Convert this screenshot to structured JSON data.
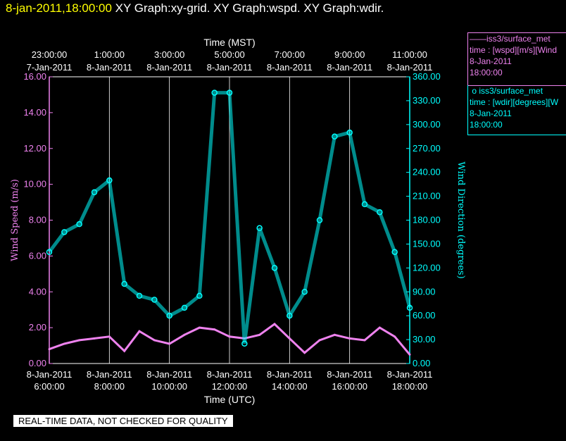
{
  "header": {
    "time": "8-jan-2011,18:00:00",
    "graphs": "XY Graph:xy-grid.  XY Graph:wspd.  XY Graph:wdir."
  },
  "legend": [
    {
      "line1": "iss3/surface_met",
      "line2": "time : [wspd][m/s][Wind",
      "line3": "8-Jan-2011",
      "line4": "18:00:00",
      "color": "#ee82ee",
      "marker": "line"
    },
    {
      "line1": "iss3/surface_met",
      "line2": "time : [wdir][degrees][W",
      "line3": "8-Jan-2011",
      "line4": "18:00:00",
      "color": "#00ffff",
      "marker": "circle"
    }
  ],
  "footer_note": "REAL-TIME DATA, NOT CHECKED FOR QUALITY",
  "chart_data": {
    "type": "scatter",
    "grid": true,
    "top_axis": {
      "label": "Time (MST)",
      "ticks": [
        {
          "time": "23:00:00",
          "date": "7-Jan-2011"
        },
        {
          "time": "1:00:00",
          "date": "8-Jan-2011"
        },
        {
          "time": "3:00:00",
          "date": "8-Jan-2011"
        },
        {
          "time": "5:00:00",
          "date": "8-Jan-2011"
        },
        {
          "time": "7:00:00",
          "date": "8-Jan-2011"
        },
        {
          "time": "9:00:00",
          "date": "8-Jan-2011"
        },
        {
          "time": "11:00:00",
          "date": "8-Jan-2011"
        }
      ]
    },
    "bottom_axis": {
      "label": "Time (UTC)",
      "range_hours_utc": [
        6,
        18
      ],
      "ticks": [
        {
          "date": "8-Jan-2011",
          "time": "6:00:00"
        },
        {
          "date": "8-Jan-2011",
          "time": "8:00:00"
        },
        {
          "date": "8-Jan-2011",
          "time": "10:00:00"
        },
        {
          "date": "8-Jan-2011",
          "time": "12:00:00"
        },
        {
          "date": "8-Jan-2011",
          "time": "14:00:00"
        },
        {
          "date": "8-Jan-2011",
          "time": "16:00:00"
        },
        {
          "date": "8-Jan-2011",
          "time": "18:00:00"
        }
      ]
    },
    "left_axis": {
      "label": "Wind Speed (m/s)",
      "ylim": [
        0,
        16
      ],
      "ticks": [
        "0.00",
        "2.00",
        "4.00",
        "6.00",
        "8.00",
        "10.00",
        "12.00",
        "14.00",
        "16.00"
      ],
      "color": "#ee82ee"
    },
    "right_axis": {
      "label": "Wind Direction (degrees)",
      "ylim": [
        0,
        360
      ],
      "ticks": [
        "0.00",
        "30.00",
        "60.00",
        "90.00",
        "120.00",
        "150.00",
        "180.00",
        "210.00",
        "240.00",
        "270.00",
        "300.00",
        "330.00",
        "360.00"
      ],
      "color": "#00ffff"
    },
    "series": [
      {
        "axis": "left",
        "color": "#ee82ee",
        "style": "line",
        "x_hours_utc": [
          6.0,
          6.5,
          7.0,
          7.5,
          8.0,
          8.5,
          9.0,
          9.5,
          10.0,
          10.5,
          11.0,
          11.5,
          12.0,
          12.5,
          13.0,
          13.5,
          14.0,
          14.5,
          15.0,
          15.5,
          16.0,
          16.5,
          17.0,
          17.5,
          18.0
        ],
        "values": [
          0.8,
          1.1,
          1.3,
          1.4,
          1.5,
          0.7,
          1.8,
          1.3,
          1.1,
          1.6,
          2.0,
          1.9,
          1.5,
          1.4,
          1.6,
          2.2,
          1.4,
          0.6,
          1.3,
          1.6,
          1.4,
          1.3,
          2.0,
          1.5,
          0.5
        ]
      },
      {
        "axis": "right",
        "color": "#00ffff",
        "style": "markers",
        "x_hours_utc": [
          6.0,
          6.5,
          7.0,
          7.5,
          8.0,
          8.5,
          9.0,
          9.5,
          10.0,
          10.5,
          11.0,
          11.5,
          12.0,
          12.5,
          13.0,
          13.5,
          14.0,
          14.5,
          15.0,
          15.5,
          16.0,
          16.5,
          17.0,
          17.5,
          18.0
        ],
        "values": [
          140,
          165,
          175,
          215,
          230,
          100,
          85,
          80,
          60,
          70,
          85,
          340,
          340,
          25,
          170,
          120,
          60,
          90,
          180,
          285,
          290,
          200,
          190,
          140,
          70
        ]
      }
    ]
  }
}
